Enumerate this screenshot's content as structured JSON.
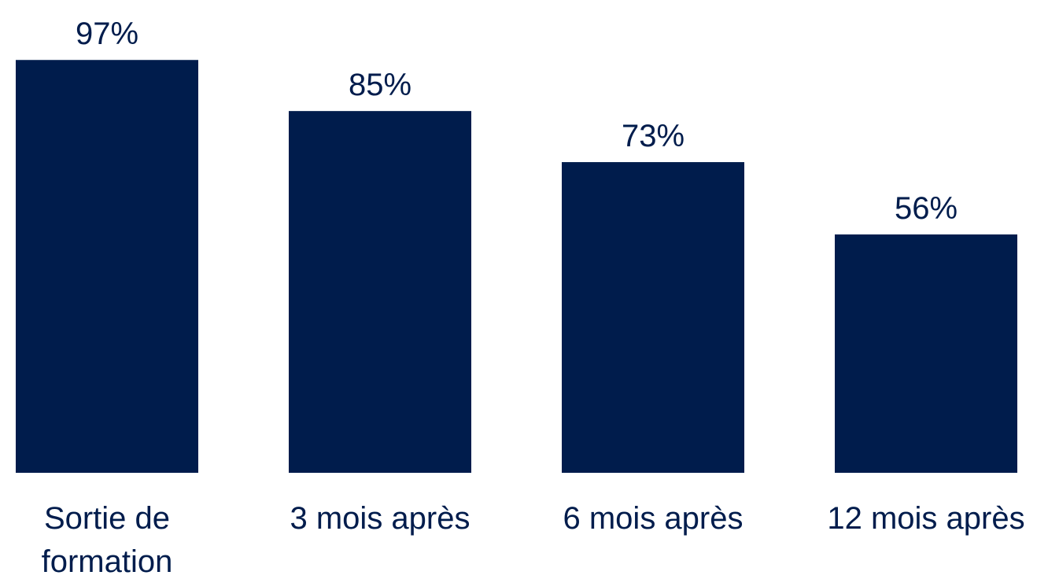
{
  "chart_data": {
    "type": "bar",
    "categories": [
      "Sortie de formation",
      "3 mois après",
      "6 mois après",
      "12 mois après"
    ],
    "values": [
      97,
      85,
      73,
      56
    ],
    "value_labels": [
      "97%",
      "85%",
      "73%",
      "56%"
    ],
    "color": "#001c4c"
  }
}
